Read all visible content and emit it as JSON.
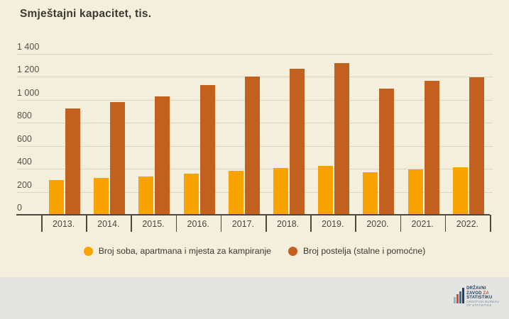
{
  "chart_data": {
    "type": "bar",
    "title": "Smještajni kapacitet, tis.",
    "categories": [
      "2013.",
      "2014.",
      "2015.",
      "2016.",
      "2017.",
      "2018.",
      "2019.",
      "2020.",
      "2021.",
      "2022."
    ],
    "series": [
      {
        "name": "Broj soba, apartmana i mjesta za kampiranje",
        "color": "#F8A300",
        "values": [
          300,
          320,
          335,
          355,
          380,
          405,
          424,
          373,
          398,
          413
        ]
      },
      {
        "name": "Broj postelja (stalne i pomoćne)",
        "color": "#C2611F",
        "values": [
          925,
          980,
          1030,
          1130,
          1205,
          1270,
          1320,
          1100,
          1165,
          1195
        ]
      }
    ],
    "ylim": [
      0,
      1400
    ],
    "yticks": [
      0,
      200,
      400,
      600,
      800,
      1000,
      1200,
      1400
    ],
    "ytick_labels": [
      "0",
      "200",
      "400",
      "600",
      "800",
      "1 000",
      "1 200",
      "1 400"
    ],
    "grid": "horizontal",
    "legend_position": "bottom-center"
  },
  "colors": {
    "background": "#F4EEDC",
    "gridline": "#DBD5C3",
    "axis": "#4A4840",
    "footer_background": "#E4E4E2"
  },
  "footer": {
    "logo": {
      "line1": "DRŽAVNI",
      "line2a": "ZAVOD",
      "line2b": "ZA",
      "line3": "STATISTIKU",
      "sub1": "CROATIAN BUREAU",
      "sub2": "OF STATISTICS"
    }
  }
}
